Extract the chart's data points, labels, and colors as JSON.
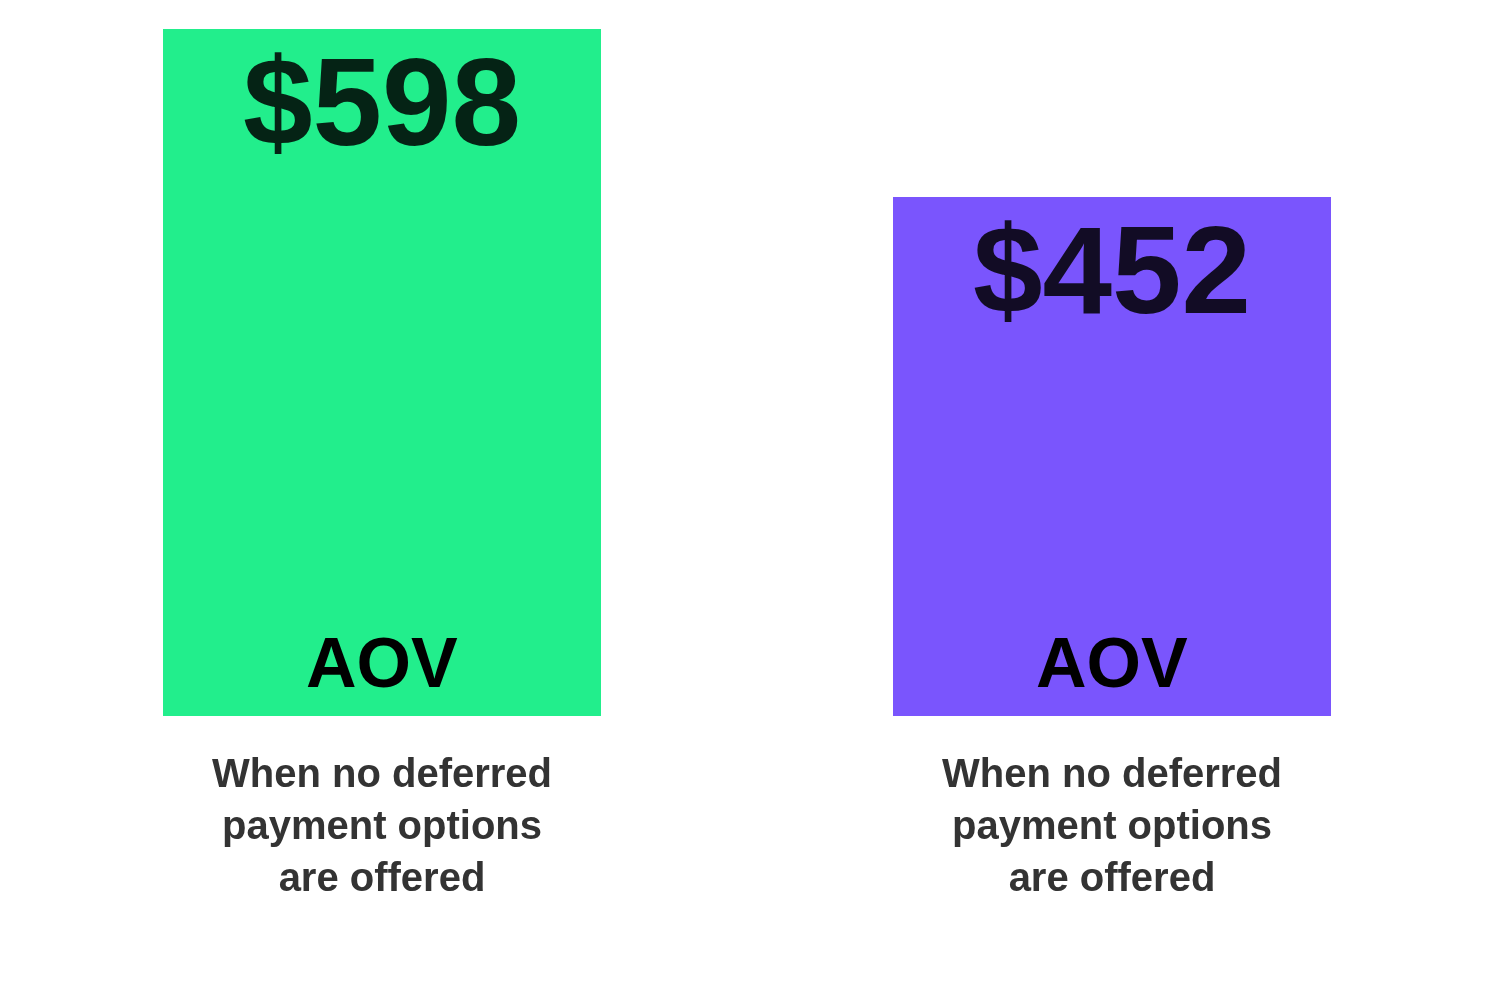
{
  "chart_data": {
    "type": "bar",
    "categories": [
      "When no deferred payment options are offered",
      "When no deferred payment options are offered"
    ],
    "values": [
      598,
      452
    ],
    "colors": [
      "#22ee8c",
      "#7a55fd"
    ],
    "value_labels": [
      "$598",
      "$452"
    ],
    "annotations": [
      "AOV",
      "AOV"
    ]
  }
}
